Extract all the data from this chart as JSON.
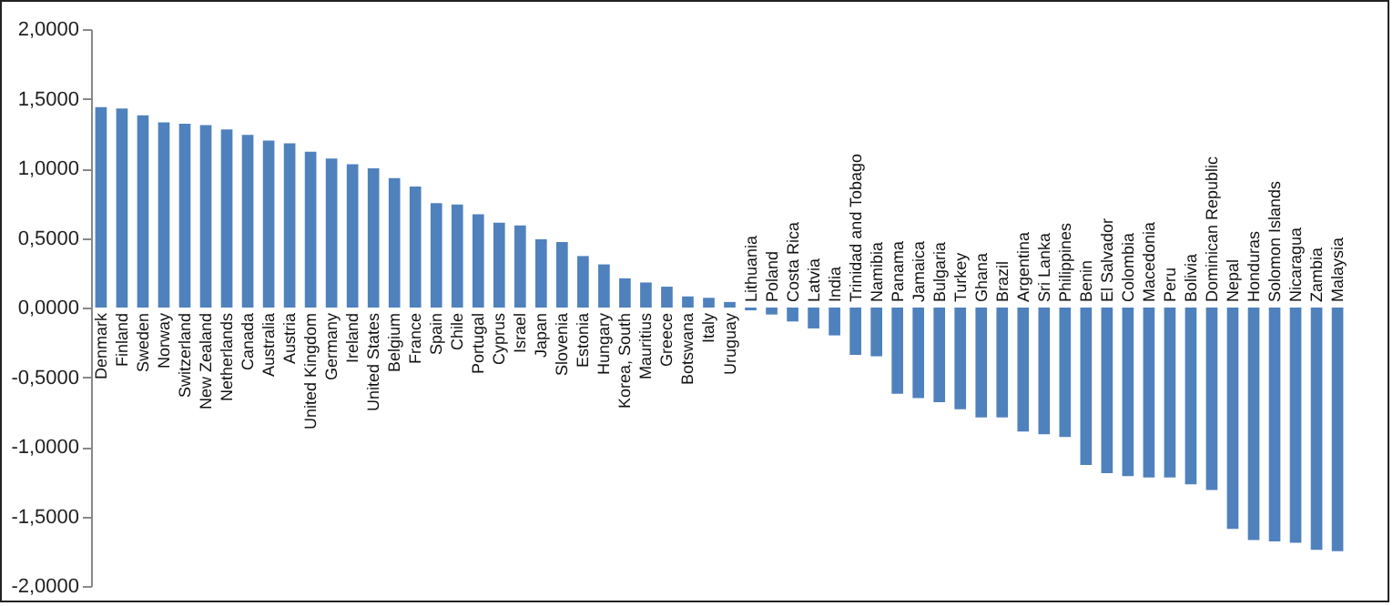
{
  "chart_data": {
    "type": "bar",
    "categories": [
      "Denmark",
      "Finland",
      "Sweden",
      "Norway",
      "Switzerland",
      "New Zealand",
      "Netherlands",
      "Canada",
      "Australia",
      "Austria",
      "United Kingdom",
      "Germany",
      "Ireland",
      "United States",
      "Belgium",
      "France",
      "Spain",
      "Chile",
      "Portugal",
      "Cyprus",
      "Israel",
      "Japan",
      "Slovenia",
      "Estonia",
      "Hungary",
      "Korea, South",
      "Mauritius",
      "Greece",
      "Botswana",
      "Italy",
      "Uruguay",
      "Lithuania",
      "Poland",
      "Costa Rica",
      "Latvia",
      "India",
      "Trinidad and Tobago",
      "Namibia",
      "Panama",
      "Jamaica",
      "Bulgaria",
      "Turkey",
      "Ghana",
      "Brazil",
      "Argentina",
      "Sri Lanka",
      "Philippines",
      "Benin",
      "El Salvador",
      "Colombia",
      "Macedonia",
      "Peru",
      "Bolivia",
      "Dominican Republic",
      "Nepal",
      "Honduras",
      "Solomon Islands",
      "Nicaragua",
      "Zambia",
      "Malaysia"
    ],
    "values": [
      1.44,
      1.43,
      1.38,
      1.33,
      1.32,
      1.31,
      1.28,
      1.24,
      1.2,
      1.18,
      1.12,
      1.07,
      1.03,
      1.0,
      0.93,
      0.87,
      0.75,
      0.74,
      0.67,
      0.61,
      0.59,
      0.49,
      0.47,
      0.37,
      0.31,
      0.21,
      0.18,
      0.15,
      0.08,
      0.07,
      0.04,
      -0.02,
      -0.05,
      -0.1,
      -0.15,
      -0.2,
      -0.34,
      -0.35,
      -0.62,
      -0.65,
      -0.68,
      -0.73,
      -0.79,
      -0.79,
      -0.89,
      -0.91,
      -0.93,
      -1.13,
      -1.19,
      -1.21,
      -1.22,
      -1.22,
      -1.27,
      -1.31,
      -1.59,
      -1.67,
      -1.68,
      -1.69,
      -1.74,
      -1.75
    ],
    "color": "#4f81bd",
    "ylim": [
      -2,
      2
    ],
    "yticks": [
      {
        "value": -2,
        "label": "-2,0000"
      },
      {
        "value": -1.5,
        "label": "-1,5000"
      },
      {
        "value": -1,
        "label": "-1,0000"
      },
      {
        "value": -0.5,
        "label": "-0,5000"
      },
      {
        "value": 0,
        "label": "0,0000"
      },
      {
        "value": 0.5,
        "label": "0,5000"
      },
      {
        "value": 1,
        "label": "1,0000"
      },
      {
        "value": 1.5,
        "label": "1,5000"
      },
      {
        "value": 2,
        "label": "2,0000"
      }
    ]
  }
}
